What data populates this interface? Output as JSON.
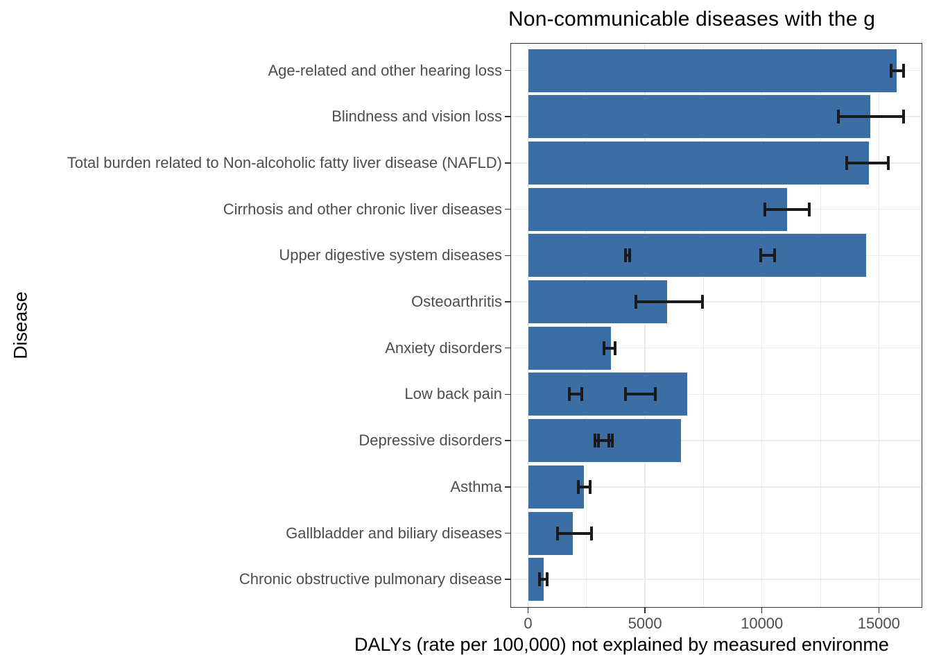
{
  "chart_data": {
    "type": "bar",
    "orientation": "horizontal",
    "title": "Non-communicable diseases with the g",
    "xlabel": "DALYs (rate per 100,000) not explained by measured environme",
    "ylabel": "Disease",
    "x_ticks": [
      0,
      5000,
      10000,
      15000
    ],
    "x_tick_labels": [
      "0",
      "5000",
      "10000",
      "15000"
    ],
    "x_minor_ticks": [
      2500,
      7500,
      12500
    ],
    "xlim": [
      0,
      16860
    ],
    "grid": "major and minor vertical gridlines, major horizontal gridlines, light gray on white",
    "legend": "none",
    "bar_color": "#3A6EA5",
    "series": [
      {
        "label": "Age-related and other hearing loss",
        "value": 15770,
        "error_bars": [
          [
            15530,
            16060
          ]
        ]
      },
      {
        "label": "Blindness and vision loss",
        "value": 14640,
        "error_bars": [
          [
            13280,
            16050
          ]
        ]
      },
      {
        "label": "Total burden related to Non-alcoholic fatty liver disease (NAFLD)",
        "value": 14590,
        "error_bars": [
          [
            13630,
            15400
          ]
        ]
      },
      {
        "label": "Cirrhosis and other chronic liver diseases",
        "value": 11080,
        "error_bars": [
          [
            10140,
            12020
          ]
        ]
      },
      {
        "label": "Upper digestive system diseases",
        "value": 14460,
        "error_bars": [
          [
            4160,
            4350
          ],
          [
            9940,
            10530
          ]
        ]
      },
      {
        "label": "Osteoarthritis",
        "value": 5960,
        "error_bars": [
          [
            4600,
            7470
          ]
        ]
      },
      {
        "label": "Anxiety disorders",
        "value": 3540,
        "error_bars": [
          [
            3250,
            3730
          ]
        ]
      },
      {
        "label": "Low back pain",
        "value": 6800,
        "error_bars": [
          [
            1760,
            2310
          ],
          [
            4160,
            5440
          ]
        ]
      },
      {
        "label": "Depressive disorders",
        "value": 6550,
        "error_bars": [
          [
            2870,
            3460
          ],
          [
            3020,
            3610
          ]
        ]
      },
      {
        "label": "Asthma",
        "value": 2400,
        "error_bars": [
          [
            2150,
            2650
          ]
        ]
      },
      {
        "label": "Gallbladder and biliary diseases",
        "value": 1910,
        "error_bars": [
          [
            1270,
            2720
          ]
        ]
      },
      {
        "label": "Chronic obstructive pulmonary disease",
        "value": 680,
        "error_bars": [
          [
            500,
            820
          ]
        ]
      }
    ]
  },
  "colors": {
    "bar": "#3A6EA5",
    "grid": "#EBEBEB",
    "axis_text": "#4D4D4D",
    "border": "#333333",
    "error": "#1A1A1A",
    "background": "#FFFFFF"
  }
}
